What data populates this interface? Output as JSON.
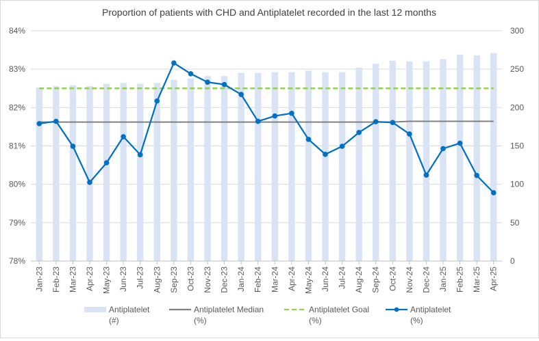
{
  "chart_data": {
    "type": "bar-line",
    "title": "Proportion of patients with CHD and Antiplatelet  recorded in the last 12 months",
    "categories": [
      "Jan-23",
      "Feb-23",
      "Mar-23",
      "Apr-23",
      "May-23",
      "Jun-23",
      "Jul-23",
      "Aug-23",
      "Sep-23",
      "Oct-23",
      "Nov-23",
      "Dec-23",
      "Jan-24",
      "Feb-24",
      "Mar-24",
      "Apr-24",
      "May-24",
      "Jun-24",
      "Jul-24",
      "Aug-24",
      "Sep-24",
      "Oct-24",
      "Nov-24",
      "Dec-24",
      "Jan-25",
      "Feb-25",
      "Mar-25",
      "Apr-25"
    ],
    "left_axis": {
      "min": 0.78,
      "max": 0.84,
      "ticks": [
        "78%",
        "79%",
        "80%",
        "81%",
        "82%",
        "83%",
        "84%"
      ]
    },
    "right_axis": {
      "min": 0,
      "max": 300,
      "ticks": [
        "0",
        "50",
        "100",
        "150",
        "200",
        "250",
        "300"
      ]
    },
    "series": [
      {
        "name": "Antiplatelet\n(#)",
        "type": "bar",
        "axis": "right",
        "color": "#dae3f3",
        "values": [
          226,
          228,
          229,
          228,
          231,
          232,
          231,
          232,
          236,
          238,
          241,
          241,
          245,
          245,
          246,
          246,
          248,
          246,
          246,
          252,
          257,
          261,
          260,
          260,
          263,
          269,
          268,
          271
        ]
      },
      {
        "name": "Antiplatelet Median\n(%)",
        "type": "line",
        "axis": "left",
        "color": "#808080",
        "values": [
          0.8162,
          0.8162,
          0.8162,
          0.8162,
          0.8162,
          0.8162,
          0.8162,
          0.8162,
          0.8162,
          0.8162,
          0.8162,
          0.8162,
          0.8162,
          0.8162,
          0.8162,
          0.8162,
          0.8162,
          0.8162,
          0.8162,
          0.8162,
          0.8162,
          0.8162,
          0.8164,
          0.8164,
          0.8164,
          0.8164,
          0.8164,
          0.8164
        ]
      },
      {
        "name": "Antiplatelet Goal\n(%)",
        "type": "line-dashed",
        "axis": "left",
        "color": "#92d050",
        "values": [
          0.825,
          0.825,
          0.825,
          0.825,
          0.825,
          0.825,
          0.825,
          0.825,
          0.825,
          0.825,
          0.825,
          0.825,
          0.825,
          0.825,
          0.825,
          0.825,
          0.825,
          0.825,
          0.825,
          0.825,
          0.825,
          0.825,
          0.825,
          0.825,
          0.825,
          0.825,
          0.825,
          0.825
        ]
      },
      {
        "name": "Antiplatelet\n(%)",
        "type": "line-markers",
        "axis": "left",
        "color": "#0070c0",
        "values": [
          0.8158,
          0.8164,
          0.8099,
          0.8005,
          0.8056,
          0.8124,
          0.8077,
          0.8217,
          0.8316,
          0.8288,
          0.8266,
          0.826,
          0.8234,
          0.8164,
          0.8178,
          0.8185,
          0.8117,
          0.8078,
          0.8099,
          0.8135,
          0.8163,
          0.8161,
          0.8131,
          0.8024,
          0.8093,
          0.8107,
          0.8023,
          0.7978
        ]
      }
    ],
    "grid": true,
    "legend_position": "bottom"
  }
}
